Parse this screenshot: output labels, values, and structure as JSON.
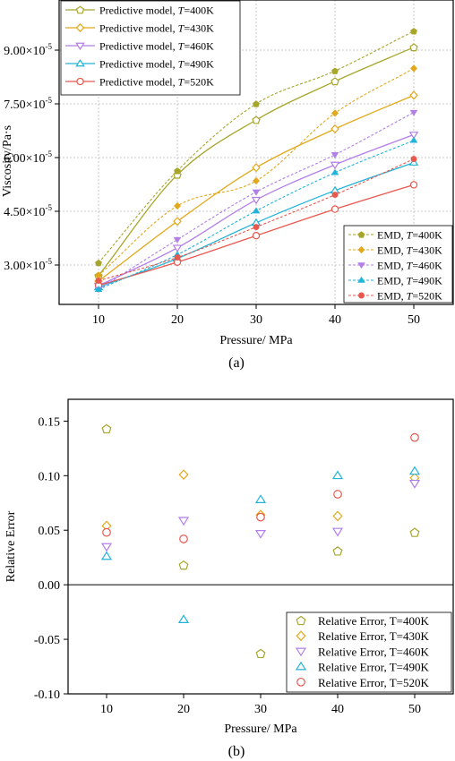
{
  "figure": {
    "panel_a_label": "(a)",
    "panel_b_label": "(b)"
  },
  "chart_data": [
    {
      "type": "line",
      "xlabel": "Pressure/ MPa",
      "ylabel": "Viscosity/Pa·s",
      "x": [
        10,
        20,
        30,
        40,
        50
      ],
      "xlim": [
        5,
        55
      ],
      "ylim": [
        1.9e-05,
        0.000104
      ],
      "xticks": [
        "10",
        "20",
        "30",
        "40",
        "50"
      ],
      "yticks": [
        {
          "value": 3e-05,
          "mantissa": "3.00×10",
          "exp": "-5"
        },
        {
          "value": 4.5e-05,
          "mantissa": "4.50×10",
          "exp": "-5"
        },
        {
          "value": 6e-05,
          "mantissa": "6.00×10",
          "exp": "-5"
        },
        {
          "value": 7.5e-05,
          "mantissa": "7.50×10",
          "exp": "-5"
        },
        {
          "value": 9e-05,
          "mantissa": "9.00×10",
          "exp": "-5"
        }
      ],
      "grid": true,
      "colors": [
        "#a7a52a",
        "#e3a81c",
        "#b27ee8",
        "#22b3d8",
        "#e8584e"
      ],
      "series": [
        {
          "name": "Predictive model, T=400K",
          "label_prefix": "Predictive model, ",
          "label_var": "T",
          "label_suffix": "=400K",
          "kind": "model",
          "marker": "pentagon",
          "values": [
            2.7e-05,
            5.52e-05,
            7.05e-05,
            8.13e-05,
            9.08e-05
          ]
        },
        {
          "name": "Predictive model, T=430K",
          "label_prefix": "Predictive model, ",
          "label_var": "T",
          "label_suffix": "=430K",
          "kind": "model",
          "marker": "diamond",
          "values": [
            2.55e-05,
            4.22e-05,
            5.72e-05,
            6.8e-05,
            7.74e-05
          ]
        },
        {
          "name": "Predictive model, T=460K",
          "label_prefix": "Predictive model, ",
          "label_var": "T",
          "label_suffix": "=460K",
          "kind": "model",
          "marker": "triangle-down",
          "values": [
            2.42e-05,
            3.48e-05,
            4.82e-05,
            5.8e-05,
            6.64e-05
          ]
        },
        {
          "name": "Predictive model, T=490K",
          "label_prefix": "Predictive model, ",
          "label_var": "T",
          "label_suffix": "=490K",
          "kind": "model",
          "marker": "triangle-up",
          "values": [
            2.38e-05,
            3.18e-05,
            4.18e-05,
            5.08e-05,
            5.86e-05
          ]
        },
        {
          "name": "Predictive model, T=520K",
          "label_prefix": "Predictive model, ",
          "label_var": "T",
          "label_suffix": "=520K",
          "kind": "model",
          "marker": "circle",
          "values": [
            2.43e-05,
            3.08e-05,
            3.82e-05,
            4.56e-05,
            5.24e-05
          ]
        },
        {
          "name": "EMD, T=400K",
          "label_prefix": "EMD, ",
          "label_var": "T",
          "label_suffix": "=400K",
          "kind": "emd",
          "marker": "pentagon",
          "values": [
            3.06e-05,
            5.63e-05,
            7.5e-05,
            8.42e-05,
            9.53e-05
          ]
        },
        {
          "name": "EMD, T=430K",
          "label_prefix": "EMD, ",
          "label_var": "T",
          "label_suffix": "=430K",
          "kind": "emd",
          "marker": "diamond",
          "values": [
            2.71e-05,
            4.65e-05,
            5.35e-05,
            7.24e-05,
            8.49e-05
          ]
        },
        {
          "name": "EMD, T=460K",
          "label_prefix": "EMD, ",
          "label_var": "T",
          "label_suffix": "=460K",
          "kind": "emd",
          "marker": "triangle-down",
          "values": [
            2.32e-05,
            3.71e-05,
            5.04e-05,
            6.08e-05,
            7.26e-05
          ]
        },
        {
          "name": "EMD, T=490K",
          "label_prefix": "EMD, ",
          "label_var": "T",
          "label_suffix": "=490K",
          "kind": "emd",
          "marker": "triangle-up",
          "values": [
            2.32e-05,
            3.29e-05,
            4.51e-05,
            5.58e-05,
            6.48e-05
          ]
        },
        {
          "name": "EMD, T=520K",
          "label_prefix": "EMD, ",
          "label_var": "T",
          "label_suffix": "=520K",
          "kind": "emd",
          "marker": "circle",
          "values": [
            2.56e-05,
            3.21e-05,
            4.06e-05,
            4.96e-05,
            5.96e-05
          ]
        }
      ],
      "legends": [
        {
          "placement": "top-left",
          "kind": "model"
        },
        {
          "placement": "bottom-right",
          "kind": "emd"
        }
      ]
    },
    {
      "type": "scatter",
      "xlabel": "Pressure/ MPa",
      "ylabel": "Relative Error",
      "x": [
        10,
        20,
        30,
        40,
        50
      ],
      "xlim": [
        5,
        55
      ],
      "ylim": [
        -0.1,
        0.17
      ],
      "xticks": [
        "10",
        "20",
        "30",
        "40",
        "50"
      ],
      "yticks": [
        {
          "value": -0.1,
          "label": "-0.10"
        },
        {
          "value": -0.05,
          "label": "-0.05"
        },
        {
          "value": 0.0,
          "label": "0.00"
        },
        {
          "value": 0.05,
          "label": "0.05"
        },
        {
          "value": 0.1,
          "label": "0.10"
        },
        {
          "value": 0.15,
          "label": "0.15"
        }
      ],
      "grid": false,
      "zero_line": true,
      "colors": [
        "#a7a52a",
        "#e3a81c",
        "#b27ee8",
        "#22b3d8",
        "#e8584e"
      ],
      "series": [
        {
          "name": "Relative Error, T=400K",
          "marker": "pentagon",
          "values": [
            0.143,
            0.018,
            -0.063,
            0.031,
            0.048
          ]
        },
        {
          "name": "Relative Error, T=430K",
          "marker": "diamond",
          "values": [
            0.054,
            0.101,
            0.064,
            0.063,
            0.098
          ]
        },
        {
          "name": "Relative Error, T=460K",
          "marker": "triangle-down",
          "values": [
            0.035,
            0.059,
            0.047,
            0.049,
            0.093
          ]
        },
        {
          "name": "Relative Error, T=490K",
          "marker": "triangle-up",
          "values": [
            0.026,
            -0.032,
            0.078,
            0.1,
            0.104
          ]
        },
        {
          "name": "Relative Error, T=520K",
          "marker": "circle",
          "values": [
            0.048,
            0.042,
            0.062,
            0.083,
            0.135
          ]
        }
      ],
      "legend": {
        "placement": "bottom-right"
      }
    }
  ]
}
